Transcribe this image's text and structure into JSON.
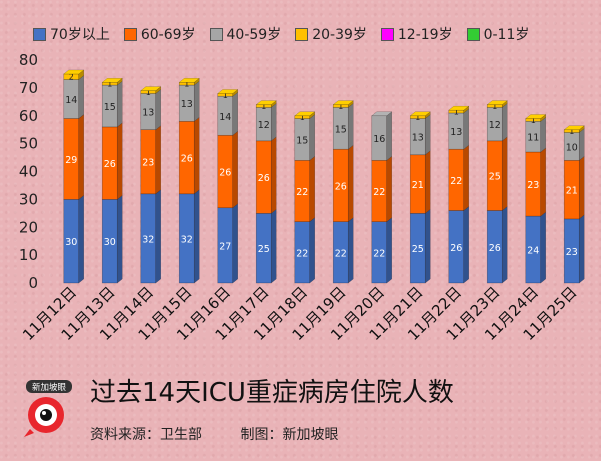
{
  "chart_data": {
    "type": "bar",
    "stacked": true,
    "title": "过去14天ICU重症病房住院人数",
    "categories": [
      "11月12日",
      "11月13日",
      "11月14日",
      "11月15日",
      "11月16日",
      "11月17日",
      "11月18日",
      "11月19日",
      "11月20日",
      "11月21日",
      "11月22日",
      "11月23日",
      "11月24日",
      "11月25日"
    ],
    "series": [
      {
        "name": "70岁以上",
        "color": "#4472c4",
        "values": [
          30,
          30,
          32,
          32,
          27,
          25,
          22,
          22,
          22,
          25,
          26,
          26,
          24,
          23
        ]
      },
      {
        "name": "60-69岁",
        "color": "#ff6600",
        "values": [
          29,
          26,
          23,
          26,
          26,
          26,
          22,
          26,
          22,
          21,
          22,
          25,
          23,
          21
        ]
      },
      {
        "name": "40-59岁",
        "color": "#a6a6a6",
        "values": [
          14,
          15,
          13,
          13,
          14,
          12,
          15,
          15,
          16,
          13,
          13,
          12,
          11,
          10
        ]
      },
      {
        "name": "20-39岁",
        "color": "#ffc000",
        "values": [
          2,
          1,
          1,
          1,
          1,
          1,
          1,
          1,
          0,
          1,
          1,
          1,
          1,
          1
        ]
      },
      {
        "name": "12-19岁",
        "color": "#ff00ff",
        "values": [
          0,
          0,
          0,
          0,
          0,
          0,
          0,
          0,
          0,
          0,
          0,
          0,
          0,
          0
        ]
      },
      {
        "name": "0-11岁",
        "color": "#33cc33",
        "values": [
          0,
          0,
          0,
          0,
          0,
          0,
          0,
          0,
          0,
          0,
          0,
          0,
          0,
          0
        ]
      }
    ],
    "ylim": [
      0,
      80
    ],
    "yticks": [
      "0",
      "10",
      "20",
      "30",
      "40",
      "50",
      "60",
      "70",
      "80"
    ],
    "legend_position": "top"
  },
  "footer": {
    "title": "过去14天ICU重症病房住院人数",
    "source": "资料来源：卫生部",
    "credit": "制图：新加坡眼"
  },
  "logo": {
    "text": "新加坡眼",
    "icon": "magnifier-eye-logo"
  }
}
